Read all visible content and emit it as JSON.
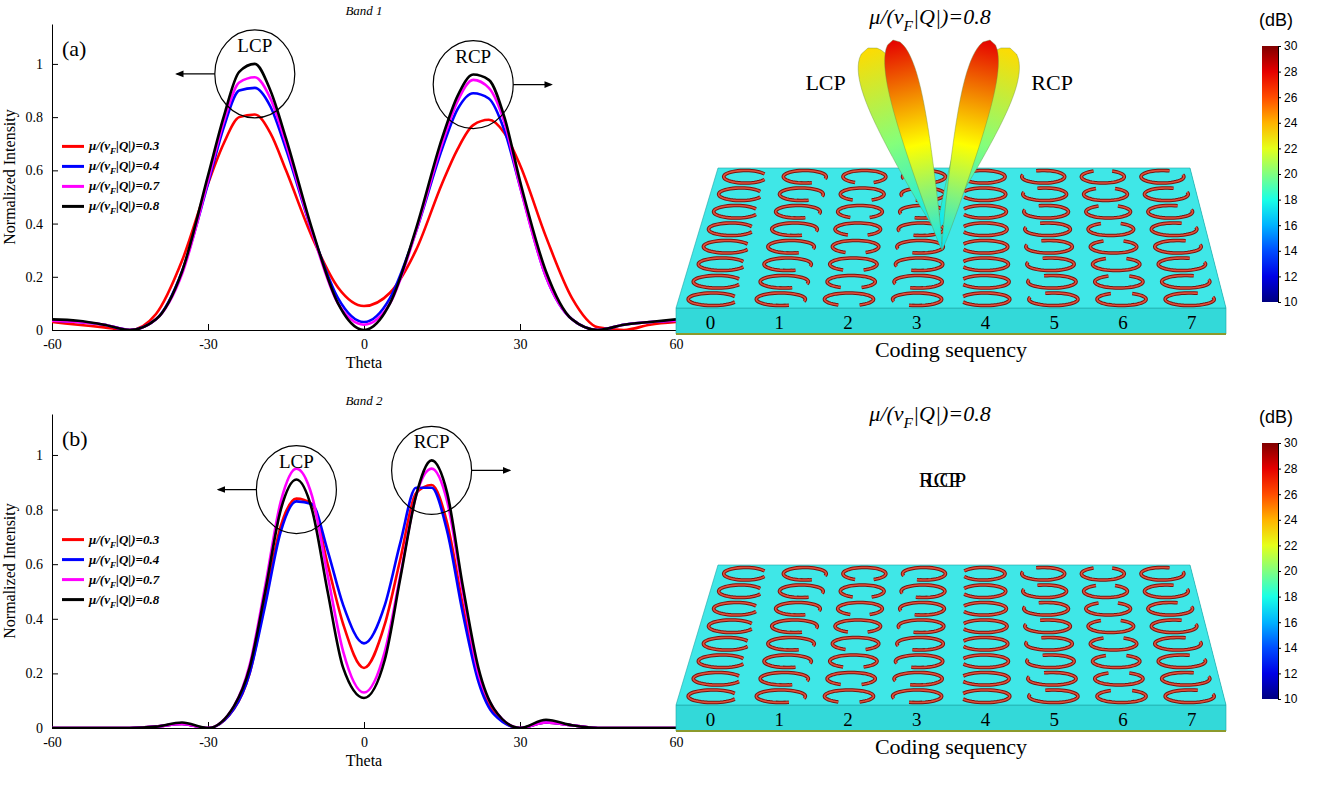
{
  "chart_data": [
    {
      "type": "line",
      "panel": "(a)",
      "title": "Band 1",
      "x_label": "Theta",
      "y_label": "Normalized Intensity",
      "x": [
        -60,
        -55,
        -50,
        -45,
        -40,
        -35,
        -30,
        -27,
        -24,
        -21,
        -18,
        -15,
        -10,
        -5,
        0,
        5,
        10,
        15,
        18,
        21,
        24,
        27,
        30,
        35,
        40,
        45,
        50,
        55,
        60
      ],
      "series": [
        {
          "name": "μ/(vF|Q|)=0.3",
          "color": "#ff0000",
          "values": [
            0.03,
            0.02,
            0.01,
            0,
            0.06,
            0.26,
            0.55,
            0.7,
            0.8,
            0.81,
            0.74,
            0.6,
            0.35,
            0.16,
            0.09,
            0.14,
            0.3,
            0.55,
            0.68,
            0.77,
            0.79,
            0.74,
            0.62,
            0.35,
            0.12,
            0.01,
            0,
            0.02,
            0.03
          ]
        },
        {
          "name": "μ/(vF|Q|)=0.4",
          "color": "#0000ff",
          "values": [
            0.035,
            0.03,
            0.02,
            0,
            0.04,
            0.22,
            0.55,
            0.76,
            0.9,
            0.91,
            0.84,
            0.68,
            0.37,
            0.12,
            0.03,
            0.12,
            0.37,
            0.68,
            0.83,
            0.89,
            0.87,
            0.75,
            0.54,
            0.2,
            0.04,
            0,
            0.02,
            0.03,
            0.035
          ]
        },
        {
          "name": "μ/(vF|Q|)=0.7",
          "color": "#ff00ff",
          "values": [
            0.035,
            0.03,
            0.02,
            0,
            0.04,
            0.21,
            0.56,
            0.78,
            0.93,
            0.95,
            0.87,
            0.7,
            0.37,
            0.1,
            0.02,
            0.1,
            0.37,
            0.7,
            0.86,
            0.94,
            0.91,
            0.78,
            0.54,
            0.2,
            0.04,
            0,
            0.02,
            0.03,
            0.035
          ]
        },
        {
          "name": "μ/(vF|Q|)=0.8",
          "color": "#000000",
          "values": [
            0.04,
            0.035,
            0.02,
            0,
            0.04,
            0.22,
            0.58,
            0.8,
            0.97,
            1.0,
            0.9,
            0.72,
            0.38,
            0.1,
            0,
            0.1,
            0.38,
            0.72,
            0.88,
            0.96,
            0.94,
            0.8,
            0.56,
            0.22,
            0.04,
            0,
            0.02,
            0.03,
            0.04
          ]
        }
      ],
      "xlim": [
        -60,
        60
      ],
      "xticks": [
        -60,
        -30,
        0,
        30,
        60
      ],
      "ylim": [
        0,
        1.15
      ],
      "yticks": [
        0,
        0.2,
        0.4,
        0.6,
        0.8,
        1
      ],
      "legend": "left",
      "annotations": [
        "LCP",
        "RCP"
      ]
    },
    {
      "type": "line",
      "panel": "(b)",
      "title": "Band 2",
      "x_label": "Theta",
      "y_label": "Normalized Intensity",
      "x": [
        -60,
        -55,
        -50,
        -45,
        -40,
        -35,
        -30,
        -25,
        -22,
        -19,
        -16,
        -13,
        -10,
        -7,
        -4,
        0,
        4,
        7,
        10,
        13,
        16,
        19,
        22,
        25,
        30,
        35,
        40,
        45,
        50,
        55,
        60
      ],
      "series": [
        {
          "name": "μ/(vF|Q|)=0.3",
          "color": "#ff0000",
          "values": [
            0,
            0,
            0,
            0,
            0.005,
            0.015,
            0,
            0.07,
            0.2,
            0.47,
            0.74,
            0.84,
            0.82,
            0.6,
            0.38,
            0.22,
            0.38,
            0.62,
            0.86,
            0.89,
            0.75,
            0.45,
            0.18,
            0.06,
            0,
            0.02,
            0.01,
            0,
            0,
            0,
            0
          ]
        },
        {
          "name": "μ/(vF|Q|)=0.4",
          "color": "#0000ff",
          "values": [
            0,
            0,
            0,
            0,
            0.005,
            0.015,
            0,
            0.07,
            0.2,
            0.45,
            0.72,
            0.83,
            0.82,
            0.65,
            0.45,
            0.31,
            0.45,
            0.68,
            0.88,
            0.88,
            0.72,
            0.42,
            0.17,
            0.05,
            0,
            0.02,
            0.01,
            0,
            0,
            0,
            0
          ]
        },
        {
          "name": "μ/(vF|Q|)=0.7",
          "color": "#ff00ff",
          "values": [
            0,
            0,
            0,
            0,
            0.005,
            0.015,
            0,
            0.08,
            0.23,
            0.52,
            0.83,
            0.95,
            0.85,
            0.56,
            0.28,
            0.13,
            0.28,
            0.56,
            0.85,
            0.95,
            0.83,
            0.5,
            0.2,
            0.07,
            0,
            0.02,
            0.01,
            0,
            0,
            0,
            0
          ]
        },
        {
          "name": "μ/(vF|Q|)=0.8",
          "color": "#000000",
          "values": [
            0,
            0,
            0,
            0,
            0.005,
            0.02,
            0,
            0.08,
            0.22,
            0.5,
            0.8,
            0.91,
            0.8,
            0.5,
            0.22,
            0.11,
            0.25,
            0.55,
            0.85,
            0.98,
            0.86,
            0.52,
            0.22,
            0.07,
            0,
            0.03,
            0.01,
            0,
            0,
            0,
            0
          ]
        }
      ],
      "xlim": [
        -60,
        60
      ],
      "xticks": [
        -60,
        -30,
        0,
        30,
        60
      ],
      "ylim": [
        0,
        1.15
      ],
      "yticks": [
        0,
        0.2,
        0.4,
        0.6,
        0.8,
        1
      ],
      "legend": "left",
      "annotations": [
        "LCP",
        "RCP"
      ]
    }
  ],
  "illustrations": [
    {
      "title": "μ/(vF|Q|)=0.8",
      "colorbar": {
        "label": "(dB)",
        "range": [
          10,
          30
        ],
        "ticks": [
          10,
          12,
          14,
          16,
          18,
          20,
          22,
          24,
          26,
          28,
          30
        ]
      },
      "beams": [
        "LCP",
        "RCP"
      ],
      "coding_sequence": [
        0,
        1,
        2,
        3,
        4,
        5,
        6,
        7
      ],
      "x_label": "Coding sequency"
    },
    {
      "title": "μ/(vF|Q|)=0.8",
      "colorbar": {
        "label": "(dB)",
        "range": [
          10,
          30
        ],
        "ticks": [
          10,
          12,
          14,
          16,
          18,
          20,
          22,
          24,
          26,
          28,
          30
        ]
      },
      "beams": [
        "LCP",
        "RCP"
      ],
      "coding_sequence": [
        0,
        1,
        2,
        3,
        4,
        5,
        6,
        7
      ],
      "x_label": "Coding sequency"
    }
  ]
}
